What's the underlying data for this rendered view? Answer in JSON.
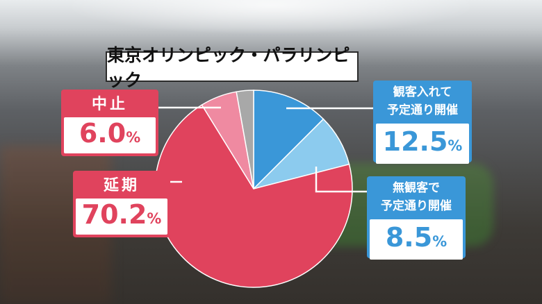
{
  "title": "東京オリンピック・パラリンピック",
  "callouts": {
    "spectators": {
      "line1": "観客入れて",
      "line2": "予定通り開催",
      "value": "12.5",
      "unit": "%"
    },
    "no_spectators": {
      "line1": "無観客で",
      "line2": "予定通り開催",
      "value": "8.5",
      "unit": "%"
    },
    "cancel": {
      "label": "中止",
      "value": "6.0",
      "unit": "%"
    },
    "postpone": {
      "label": "延期",
      "value": "70.2",
      "unit": "%"
    }
  },
  "colors": {
    "blue_dark": "#3a97d8",
    "blue_light": "#8ccbee",
    "red": "#e0435d",
    "pink": "#ef8aa1",
    "gray": "#a8a8a8"
  },
  "chart_data": {
    "type": "pie",
    "slices": [
      {
        "label": "観客入れて予定通り開催",
        "value": 12.5,
        "color": "#3a97d8"
      },
      {
        "label": "無観客で予定通り開催",
        "value": 8.5,
        "color": "#8ccbee"
      },
      {
        "label": "延期",
        "value": 70.2,
        "color": "#e0435d"
      },
      {
        "label": "中止",
        "value": 6.0,
        "color": "#ef8aa1"
      },
      {
        "label": "",
        "value": 2.8,
        "color": "#a8a8a8"
      }
    ],
    "start": "12 o'clock",
    "direction": "clockwise"
  }
}
